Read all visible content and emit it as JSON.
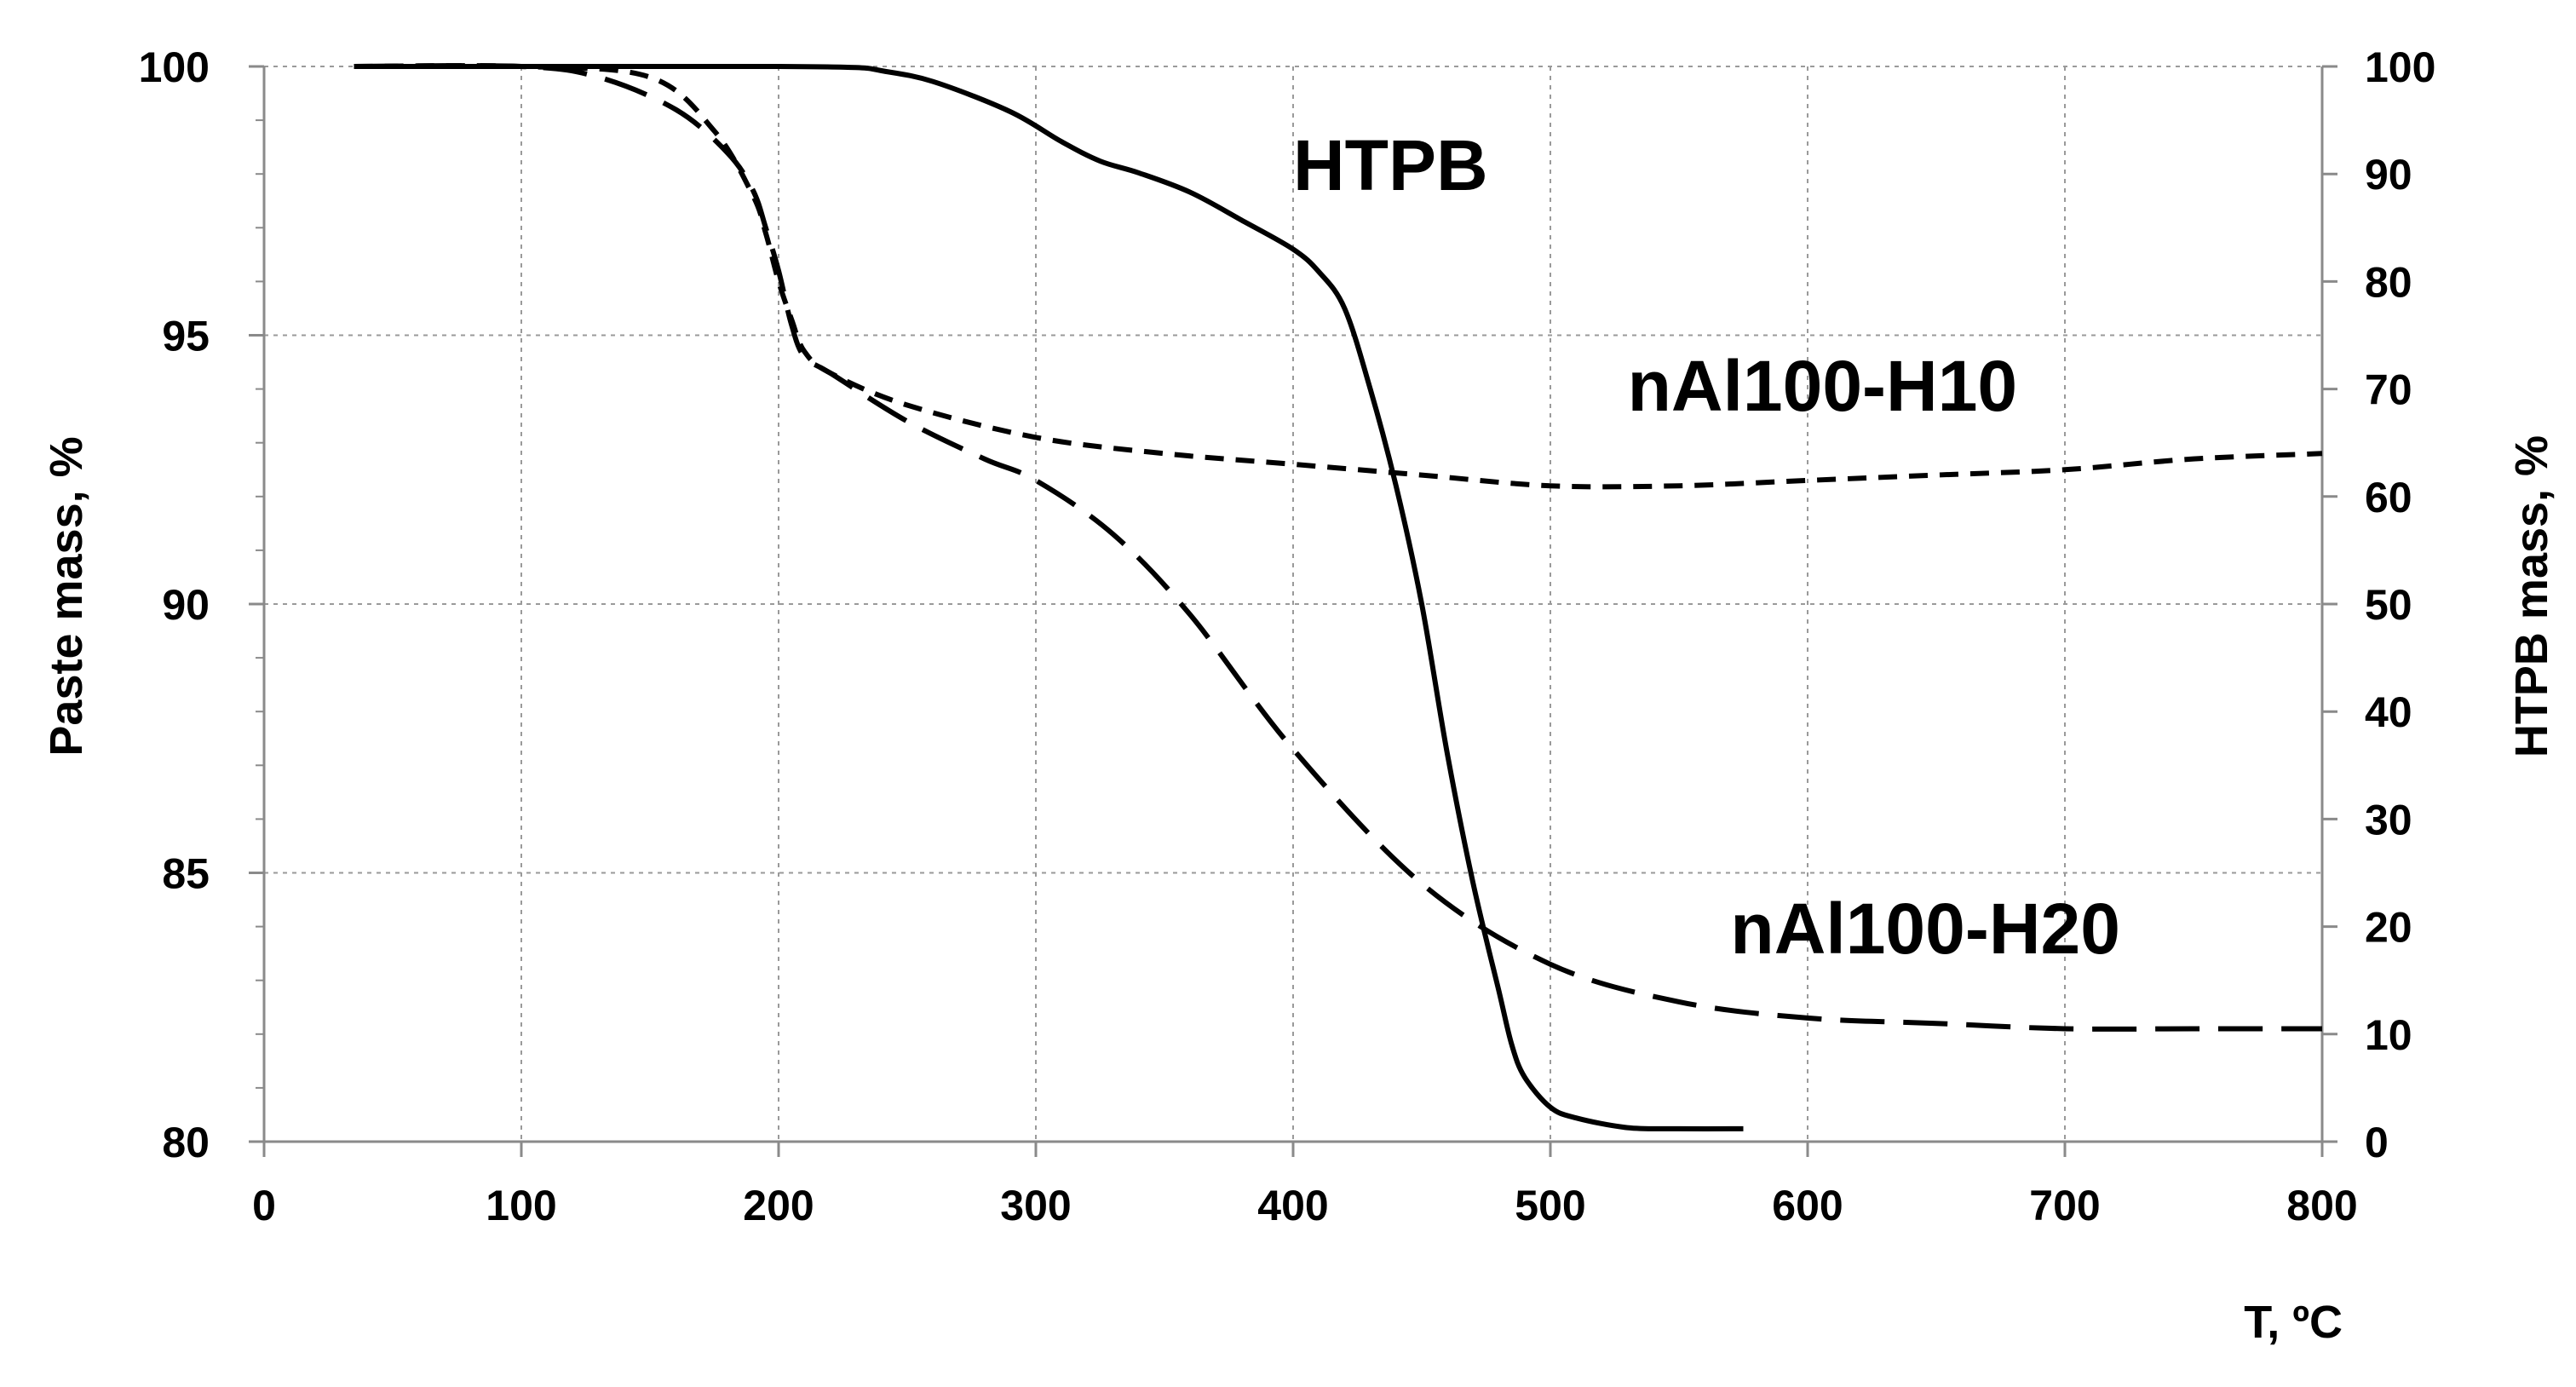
{
  "chart_data": {
    "type": "line",
    "title": "",
    "xlabel": "T, ºC",
    "ylabel": "Paste mass, %",
    "y2label": "HTPB mass, %",
    "xlim": [
      0,
      800
    ],
    "ylim": [
      80,
      100
    ],
    "y2lim": [
      0,
      100
    ],
    "grid": true,
    "x_ticks": [
      "0",
      "100",
      "200",
      "300",
      "400",
      "500",
      "600",
      "700",
      "800"
    ],
    "y_ticks": [
      "80",
      "85",
      "90",
      "95",
      "100"
    ],
    "y2_ticks": [
      "0",
      "10",
      "20",
      "30",
      "40",
      "50",
      "60",
      "70",
      "80",
      "90",
      "100"
    ],
    "series": [
      {
        "name": "HTPB",
        "axis": "right",
        "style": "solid",
        "x": [
          35,
          100,
          150,
          200,
          230,
          240,
          260,
          290,
          310,
          325,
          340,
          360,
          380,
          400,
          410,
          420,
          430,
          440,
          450,
          460,
          470,
          480,
          485,
          490,
          500,
          510,
          530,
          550,
          575
        ],
        "y": [
          100,
          100,
          100,
          100,
          99.9,
          99.6,
          98.6,
          95.8,
          93.0,
          91.2,
          90.1,
          88.3,
          85.7,
          83.0,
          80.9,
          77.5,
          70.0,
          61.0,
          50.0,
          36.0,
          24.0,
          14.0,
          9.0,
          6.0,
          3.2,
          2.2,
          1.3,
          1.2,
          1.2
        ]
      },
      {
        "name": "nAl100-H10",
        "axis": "left",
        "style": "short-dash",
        "x": [
          35,
          100,
          150,
          175,
          190,
          195,
          200,
          205,
          210,
          220,
          250,
          300,
          350,
          400,
          450,
          500,
          550,
          600,
          650,
          700,
          750,
          800
        ],
        "y": [
          100,
          100,
          99.8,
          98.8,
          97.6,
          96.9,
          96.0,
          95.3,
          94.7,
          94.3,
          93.7,
          93.1,
          92.8,
          92.6,
          92.4,
          92.2,
          92.2,
          92.3,
          92.4,
          92.5,
          92.7,
          92.8
        ]
      },
      {
        "name": "nAl100-H20",
        "axis": "left",
        "style": "long-dash",
        "x": [
          35,
          100,
          130,
          160,
          180,
          190,
          195,
          200,
          205,
          210,
          220,
          250,
          280,
          300,
          330,
          360,
          400,
          450,
          500,
          550,
          600,
          650,
          700,
          750,
          800
        ],
        "y": [
          100,
          100,
          99.8,
          99.2,
          98.4,
          97.7,
          97.0,
          96.2,
          95.2,
          94.6,
          94.3,
          93.4,
          92.7,
          92.3,
          91.3,
          89.8,
          87.3,
          84.8,
          83.3,
          82.6,
          82.3,
          82.2,
          82.1,
          82.1,
          82.1
        ]
      }
    ],
    "annotations": [
      {
        "text": "HTPB",
        "x": 400,
        "y": 97.7
      },
      {
        "text": "nAl100-H10",
        "x": 530,
        "y": 93.6
      },
      {
        "text": "nAl100-H20",
        "x": 570,
        "y": 83.5
      }
    ]
  }
}
